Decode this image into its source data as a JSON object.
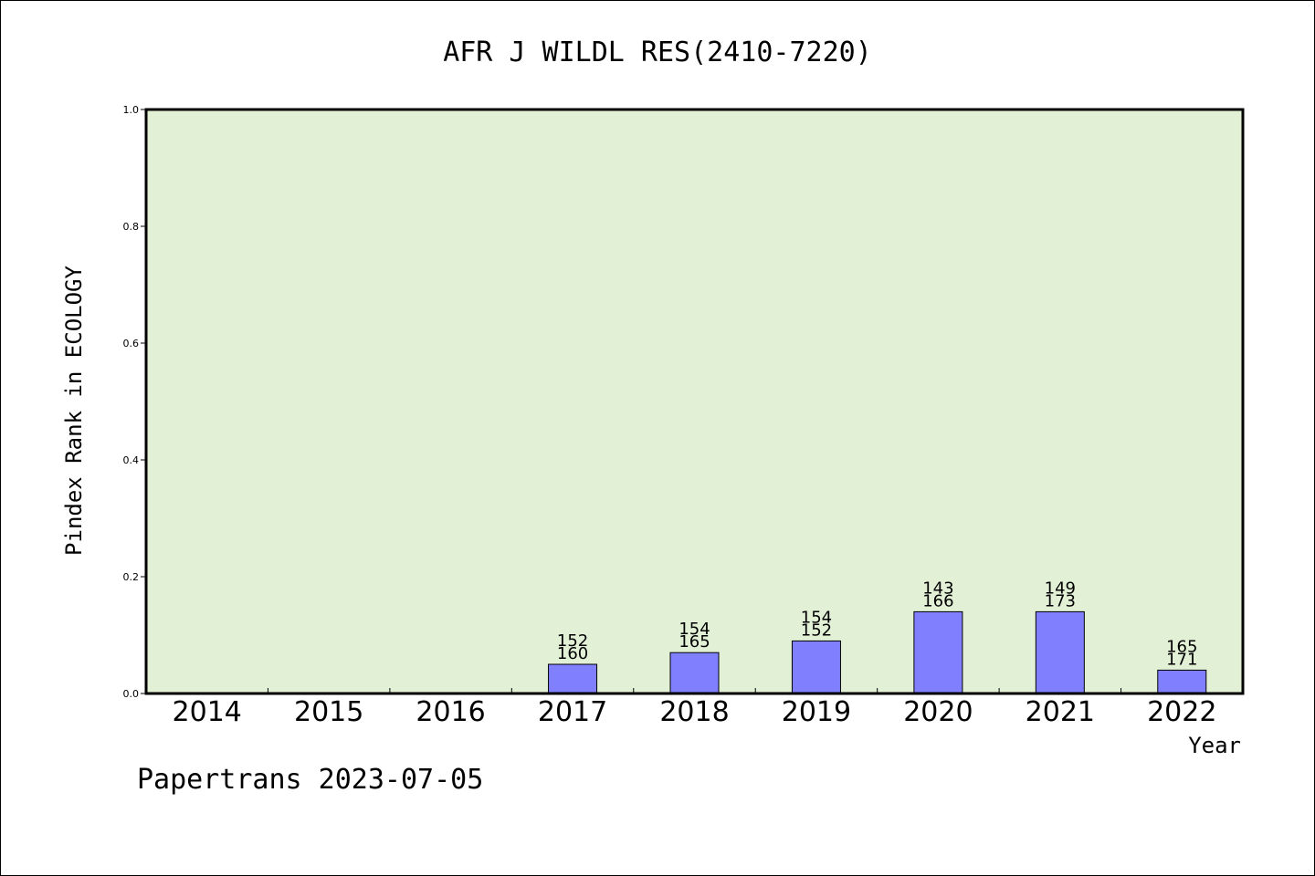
{
  "chart_data": {
    "type": "bar",
    "title": "AFR J WILDL RES(2410-7220)",
    "xlabel": "Year",
    "ylabel": "Pindex Rank in ECOLOGY",
    "categories": [
      "2014",
      "2015",
      "2016",
      "2017",
      "2018",
      "2019",
      "2020",
      "2021",
      "2022"
    ],
    "values": [
      null,
      null,
      null,
      0.05,
      0.07,
      0.09,
      0.14,
      0.14,
      0.04
    ],
    "bar_labels_top": [
      "",
      "",
      "",
      "152",
      "154",
      "154",
      "143",
      "149",
      "165"
    ],
    "bar_labels_bottom": [
      "",
      "",
      "",
      "160",
      "165",
      "152",
      "166",
      "173",
      "171"
    ],
    "ylim": [
      0,
      1.0
    ],
    "yticks": [
      "0.0",
      "0.2",
      "0.4",
      "0.6",
      "0.8",
      "1.0"
    ],
    "grid": false,
    "colors": {
      "plot_background": "#e2f0d6",
      "bar_fill": "#8080ff",
      "bar_stroke": "#000000"
    }
  },
  "footer": "Papertrans 2023-07-05"
}
